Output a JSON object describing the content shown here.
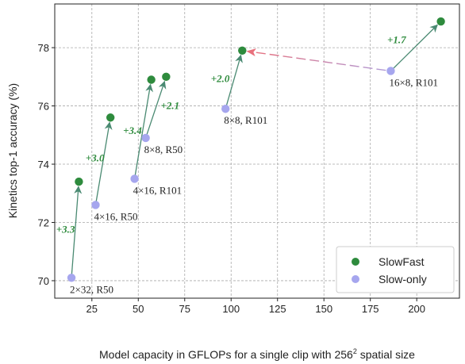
{
  "chart_data": {
    "type": "scatter",
    "xlabel": "Model capacity in GFLOPs for a single clip with 256",
    "xlabel_superscript": "2",
    "xlabel_suffix": " spatial size",
    "ylabel": "Kinetics top-1 accuracy (%)",
    "xlim": [
      5,
      223
    ],
    "ylim": [
      69.4,
      79.5
    ],
    "xticks": [
      25,
      50,
      75,
      100,
      125,
      150,
      175,
      200
    ],
    "yticks": [
      70,
      72,
      74,
      76,
      78
    ],
    "grid": true,
    "legend_position": "bottom-right",
    "legend": [
      {
        "label": "SlowFast",
        "color": "#2e8b3d"
      },
      {
        "label": "Slow-only",
        "color": "#a6a6ee"
      }
    ],
    "slow_only": [
      {
        "x": 14,
        "y": 70.1,
        "label": "2×32, R50"
      },
      {
        "x": 27,
        "y": 72.6,
        "label": "4×16, R50"
      },
      {
        "x": 48,
        "y": 73.5,
        "label": "4×16, R101"
      },
      {
        "x": 54,
        "y": 74.9,
        "label": "8×8, R50"
      },
      {
        "x": 97,
        "y": 75.9,
        "label": "8×8, R101"
      },
      {
        "x": 186,
        "y": 77.2,
        "label": "16×8, R101"
      }
    ],
    "slowfast": [
      {
        "x": 18,
        "y": 73.4
      },
      {
        "x": 35,
        "y": 75.6
      },
      {
        "x": 57,
        "y": 76.9
      },
      {
        "x": 65,
        "y": 77.0
      },
      {
        "x": 106,
        "y": 77.9
      },
      {
        "x": 213,
        "y": 78.9
      }
    ],
    "links": [
      {
        "from": 0,
        "to": 0,
        "gain": "+3.3"
      },
      {
        "from": 1,
        "to": 1,
        "gain": "+3.0"
      },
      {
        "from": 2,
        "to": 2,
        "gain": "+3.4"
      },
      {
        "from": 3,
        "to": 3,
        "gain": "+2.1"
      },
      {
        "from": 4,
        "to": 4,
        "gain": "+2.0"
      },
      {
        "from": 5,
        "to": 5,
        "gain": "+1.7"
      }
    ],
    "dashed_link": {
      "from_slow_only": 5,
      "to_slowfast": 4
    }
  }
}
